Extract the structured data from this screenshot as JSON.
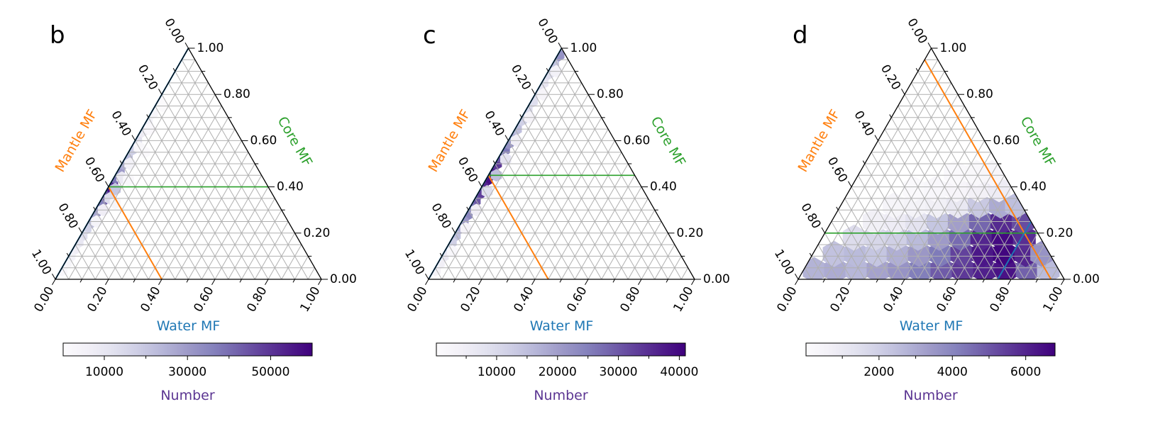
{
  "chart_data": [
    {
      "type": "heatmap",
      "panel_label": "b",
      "axes": {
        "bottom": {
          "label": "Water MF",
          "ticks": [
            "0.00",
            "0.20",
            "0.40",
            "0.60",
            "0.80",
            "1.00"
          ],
          "color": "#1f77b4"
        },
        "right": {
          "label": "Core MF",
          "ticks": [
            "0.00",
            "0.20",
            "0.40",
            "0.60",
            "0.80",
            "1.00"
          ],
          "color": "#2ca02c"
        },
        "left": {
          "label": "Mantle MF",
          "ticks": [
            "0.00",
            "0.20",
            "0.40",
            "0.60",
            "0.80",
            "1.00"
          ],
          "color": "#ff7f0e"
        }
      },
      "grid": true,
      "guide_lines": {
        "water": 0.0,
        "core": 0.4,
        "mantle": 0.6
      },
      "colorbar": {
        "label": "Number",
        "ticks": [
          10000,
          30000,
          50000
        ],
        "tick_labels": [
          "10000",
          "30000",
          "50000"
        ],
        "range": [
          100,
          60000
        ],
        "colormap": "Purples"
      },
      "hexbins": [
        {
          "water": 0.005,
          "core": 0.4,
          "count": 60000
        },
        {
          "water": 0.005,
          "core": 0.38,
          "count": 57000
        },
        {
          "water": 0.005,
          "core": 0.42,
          "count": 52000
        },
        {
          "water": 0.005,
          "core": 0.36,
          "count": 46000
        },
        {
          "water": 0.005,
          "core": 0.44,
          "count": 38000
        },
        {
          "water": 0.005,
          "core": 0.34,
          "count": 42000
        },
        {
          "water": 0.005,
          "core": 0.32,
          "count": 36000
        },
        {
          "water": 0.005,
          "core": 0.47,
          "count": 30000
        },
        {
          "water": 0.005,
          "core": 0.29,
          "count": 32000
        },
        {
          "water": 0.005,
          "core": 0.5,
          "count": 26000
        },
        {
          "water": 0.005,
          "core": 0.27,
          "count": 27000
        },
        {
          "water": 0.005,
          "core": 0.53,
          "count": 22000
        },
        {
          "water": 0.005,
          "core": 0.24,
          "count": 22000
        },
        {
          "water": 0.005,
          "core": 0.56,
          "count": 18000
        },
        {
          "water": 0.005,
          "core": 0.22,
          "count": 17000
        },
        {
          "water": 0.005,
          "core": 0.6,
          "count": 12000
        },
        {
          "water": 0.005,
          "core": 0.19,
          "count": 13000
        },
        {
          "water": 0.005,
          "core": 0.64,
          "count": 8000
        },
        {
          "water": 0.005,
          "core": 0.16,
          "count": 10000
        },
        {
          "water": 0.005,
          "core": 0.68,
          "count": 5000
        },
        {
          "water": 0.005,
          "core": 0.13,
          "count": 7000
        },
        {
          "water": 0.005,
          "core": 0.72,
          "count": 3000
        },
        {
          "water": 0.005,
          "core": 0.1,
          "count": 5000
        },
        {
          "water": 0.005,
          "core": 0.77,
          "count": 1500
        },
        {
          "water": 0.005,
          "core": 0.07,
          "count": 3500
        },
        {
          "water": 0.005,
          "core": 0.04,
          "count": 2000
        },
        {
          "water": 0.03,
          "core": 0.39,
          "count": 20000
        },
        {
          "water": 0.03,
          "core": 0.35,
          "count": 14000
        },
        {
          "water": 0.03,
          "core": 0.44,
          "count": 9000
        },
        {
          "water": 0.03,
          "core": 0.3,
          "count": 7000
        },
        {
          "water": 0.03,
          "core": 0.5,
          "count": 5000
        },
        {
          "water": 0.03,
          "core": 0.25,
          "count": 4000
        },
        {
          "water": 0.03,
          "core": 0.57,
          "count": 2500
        },
        {
          "water": 0.03,
          "core": 0.65,
          "count": 1500
        },
        {
          "water": 0.03,
          "core": 0.75,
          "count": 900
        },
        {
          "water": 0.06,
          "core": 0.33,
          "count": 3000
        },
        {
          "water": 0.06,
          "core": 0.43,
          "count": 1800
        },
        {
          "water": 0.06,
          "core": 0.55,
          "count": 1000
        }
      ]
    },
    {
      "type": "heatmap",
      "panel_label": "c",
      "axes": {
        "bottom": {
          "label": "Water MF",
          "ticks": [
            "0.00",
            "0.20",
            "0.40",
            "0.60",
            "0.80",
            "1.00"
          ],
          "color": "#1f77b4"
        },
        "right": {
          "label": "Core MF",
          "ticks": [
            "0.00",
            "0.20",
            "0.40",
            "0.60",
            "0.80",
            "1.00"
          ],
          "color": "#2ca02c"
        },
        "left": {
          "label": "Mantle MF",
          "ticks": [
            "0.00",
            "0.20",
            "0.40",
            "0.60",
            "0.80",
            "1.00"
          ],
          "color": "#ff7f0e"
        }
      },
      "grid": true,
      "guide_lines": {
        "water": 0.0,
        "core": 0.45,
        "mantle": 0.55
      },
      "colorbar": {
        "label": "Number",
        "ticks": [
          10000,
          20000,
          30000,
          40000
        ],
        "tick_labels": [
          "10000",
          "20000",
          "30000",
          "40000"
        ],
        "range": [
          100,
          41000
        ],
        "colormap": "Purples"
      },
      "hexbins": [
        {
          "water": 0.005,
          "core": 0.45,
          "count": 41000
        },
        {
          "water": 0.005,
          "core": 0.43,
          "count": 39000
        },
        {
          "water": 0.005,
          "core": 0.47,
          "count": 38000
        },
        {
          "water": 0.005,
          "core": 0.4,
          "count": 36000
        },
        {
          "water": 0.005,
          "core": 0.5,
          "count": 34000
        },
        {
          "water": 0.005,
          "core": 0.37,
          "count": 33000
        },
        {
          "water": 0.005,
          "core": 0.53,
          "count": 30000
        },
        {
          "water": 0.005,
          "core": 0.34,
          "count": 30000
        },
        {
          "water": 0.005,
          "core": 0.56,
          "count": 26000
        },
        {
          "water": 0.005,
          "core": 0.31,
          "count": 27000
        },
        {
          "water": 0.005,
          "core": 0.59,
          "count": 22000
        },
        {
          "water": 0.005,
          "core": 0.28,
          "count": 24000
        },
        {
          "water": 0.005,
          "core": 0.62,
          "count": 18000
        },
        {
          "water": 0.005,
          "core": 0.25,
          "count": 21000
        },
        {
          "water": 0.005,
          "core": 0.65,
          "count": 15000
        },
        {
          "water": 0.005,
          "core": 0.22,
          "count": 18000
        },
        {
          "water": 0.005,
          "core": 0.69,
          "count": 12000
        },
        {
          "water": 0.005,
          "core": 0.19,
          "count": 15000
        },
        {
          "water": 0.005,
          "core": 0.73,
          "count": 10000
        },
        {
          "water": 0.005,
          "core": 0.16,
          "count": 12000
        },
        {
          "water": 0.005,
          "core": 0.77,
          "count": 9000
        },
        {
          "water": 0.005,
          "core": 0.13,
          "count": 9000
        },
        {
          "water": 0.005,
          "core": 0.81,
          "count": 8000
        },
        {
          "water": 0.005,
          "core": 0.1,
          "count": 6500
        },
        {
          "water": 0.005,
          "core": 0.85,
          "count": 7000
        },
        {
          "water": 0.005,
          "core": 0.07,
          "count": 4500
        },
        {
          "water": 0.005,
          "core": 0.89,
          "count": 9000
        },
        {
          "water": 0.005,
          "core": 0.04,
          "count": 3000
        },
        {
          "water": 0.005,
          "core": 0.93,
          "count": 14000
        },
        {
          "water": 0.005,
          "core": 0.97,
          "count": 22000
        },
        {
          "water": 0.03,
          "core": 0.45,
          "count": 15000
        },
        {
          "water": 0.03,
          "core": 0.38,
          "count": 9000
        },
        {
          "water": 0.03,
          "core": 0.52,
          "count": 8000
        },
        {
          "water": 0.03,
          "core": 0.3,
          "count": 5000
        },
        {
          "water": 0.03,
          "core": 0.6,
          "count": 4500
        },
        {
          "water": 0.03,
          "core": 0.7,
          "count": 3000
        },
        {
          "water": 0.03,
          "core": 0.22,
          "count": 3000
        },
        {
          "water": 0.03,
          "core": 0.8,
          "count": 2500
        },
        {
          "water": 0.03,
          "core": 0.9,
          "count": 3500
        },
        {
          "water": 0.03,
          "core": 0.12,
          "count": 1500
        }
      ]
    },
    {
      "type": "heatmap",
      "panel_label": "d",
      "axes": {
        "bottom": {
          "label": "Water MF",
          "ticks": [
            "0.00",
            "0.20",
            "0.40",
            "0.60",
            "0.80",
            "1.00"
          ],
          "color": "#1f77b4"
        },
        "right": {
          "label": "Core MF",
          "ticks": [
            "0.00",
            "0.20",
            "0.40",
            "0.60",
            "0.80",
            "1.00"
          ],
          "color": "#2ca02c"
        },
        "left": {
          "label": "Mantle MF",
          "ticks": [
            "0.00",
            "0.20",
            "0.40",
            "0.60",
            "0.80",
            "1.00"
          ],
          "color": "#ff7f0e"
        }
      },
      "grid": true,
      "guide_lines": {
        "water": 0.75,
        "core": 0.2,
        "mantle": 0.05
      },
      "colorbar": {
        "label": "Number",
        "ticks": [
          2000,
          4000,
          6000
        ],
        "tick_labels": [
          "2000",
          "4000",
          "6000"
        ],
        "range": [
          10,
          6800
        ],
        "colormap": "Purples"
      },
      "hexbins": [
        {
          "water": 0.04,
          "core": 0.04,
          "count": 2800
        },
        {
          "water": 0.12,
          "core": 0.04,
          "count": 3000
        },
        {
          "water": 0.2,
          "core": 0.04,
          "count": 2700
        },
        {
          "water": 0.28,
          "core": 0.04,
          "count": 3200
        },
        {
          "water": 0.36,
          "core": 0.04,
          "count": 3600
        },
        {
          "water": 0.44,
          "core": 0.04,
          "count": 4200
        },
        {
          "water": 0.52,
          "core": 0.04,
          "count": 4900
        },
        {
          "water": 0.6,
          "core": 0.04,
          "count": 5600
        },
        {
          "water": 0.68,
          "core": 0.04,
          "count": 6100
        },
        {
          "water": 0.76,
          "core": 0.04,
          "count": 6400
        },
        {
          "water": 0.84,
          "core": 0.04,
          "count": 4800
        },
        {
          "water": 0.92,
          "core": 0.04,
          "count": 2600
        },
        {
          "water": 0.08,
          "core": 0.11,
          "count": 2400
        },
        {
          "water": 0.16,
          "core": 0.11,
          "count": 2600
        },
        {
          "water": 0.24,
          "core": 0.11,
          "count": 2300
        },
        {
          "water": 0.32,
          "core": 0.11,
          "count": 2900
        },
        {
          "water": 0.4,
          "core": 0.11,
          "count": 3500
        },
        {
          "water": 0.48,
          "core": 0.11,
          "count": 4300
        },
        {
          "water": 0.56,
          "core": 0.11,
          "count": 5400
        },
        {
          "water": 0.64,
          "core": 0.11,
          "count": 6300
        },
        {
          "water": 0.72,
          "core": 0.11,
          "count": 6700
        },
        {
          "water": 0.8,
          "core": 0.11,
          "count": 6000
        },
        {
          "water": 0.86,
          "core": 0.11,
          "count": 3600
        },
        {
          "water": 0.12,
          "core": 0.18,
          "count": 1600
        },
        {
          "water": 0.2,
          "core": 0.18,
          "count": 1800
        },
        {
          "water": 0.28,
          "core": 0.18,
          "count": 2000
        },
        {
          "water": 0.36,
          "core": 0.18,
          "count": 2600
        },
        {
          "water": 0.44,
          "core": 0.18,
          "count": 3400
        },
        {
          "water": 0.52,
          "core": 0.18,
          "count": 4600
        },
        {
          "water": 0.6,
          "core": 0.18,
          "count": 6000
        },
        {
          "water": 0.68,
          "core": 0.18,
          "count": 6600
        },
        {
          "water": 0.76,
          "core": 0.18,
          "count": 5800
        },
        {
          "water": 0.16,
          "core": 0.25,
          "count": 700
        },
        {
          "water": 0.24,
          "core": 0.25,
          "count": 900
        },
        {
          "water": 0.32,
          "core": 0.25,
          "count": 1300
        },
        {
          "water": 0.4,
          "core": 0.25,
          "count": 2300
        },
        {
          "water": 0.48,
          "core": 0.25,
          "count": 3300
        },
        {
          "water": 0.56,
          "core": 0.25,
          "count": 4700
        },
        {
          "water": 0.64,
          "core": 0.25,
          "count": 5900
        },
        {
          "water": 0.72,
          "core": 0.25,
          "count": 5200
        },
        {
          "water": 0.2,
          "core": 0.32,
          "count": 400
        },
        {
          "water": 0.28,
          "core": 0.32,
          "count": 500
        },
        {
          "water": 0.36,
          "core": 0.32,
          "count": 700
        },
        {
          "water": 0.44,
          "core": 0.32,
          "count": 1100
        },
        {
          "water": 0.52,
          "core": 0.32,
          "count": 2200
        },
        {
          "water": 0.6,
          "core": 0.32,
          "count": 3000
        },
        {
          "water": 0.66,
          "core": 0.32,
          "count": 2500
        },
        {
          "water": 0.24,
          "core": 0.39,
          "count": 150
        },
        {
          "water": 0.32,
          "core": 0.39,
          "count": 250
        },
        {
          "water": 0.4,
          "core": 0.39,
          "count": 350
        },
        {
          "water": 0.48,
          "core": 0.39,
          "count": 600
        },
        {
          "water": 0.56,
          "core": 0.39,
          "count": 900
        },
        {
          "water": 0.36,
          "core": 0.46,
          "count": 120
        },
        {
          "water": 0.44,
          "core": 0.46,
          "count": 200
        },
        {
          "water": 0.5,
          "core": 0.46,
          "count": 300
        }
      ]
    }
  ]
}
